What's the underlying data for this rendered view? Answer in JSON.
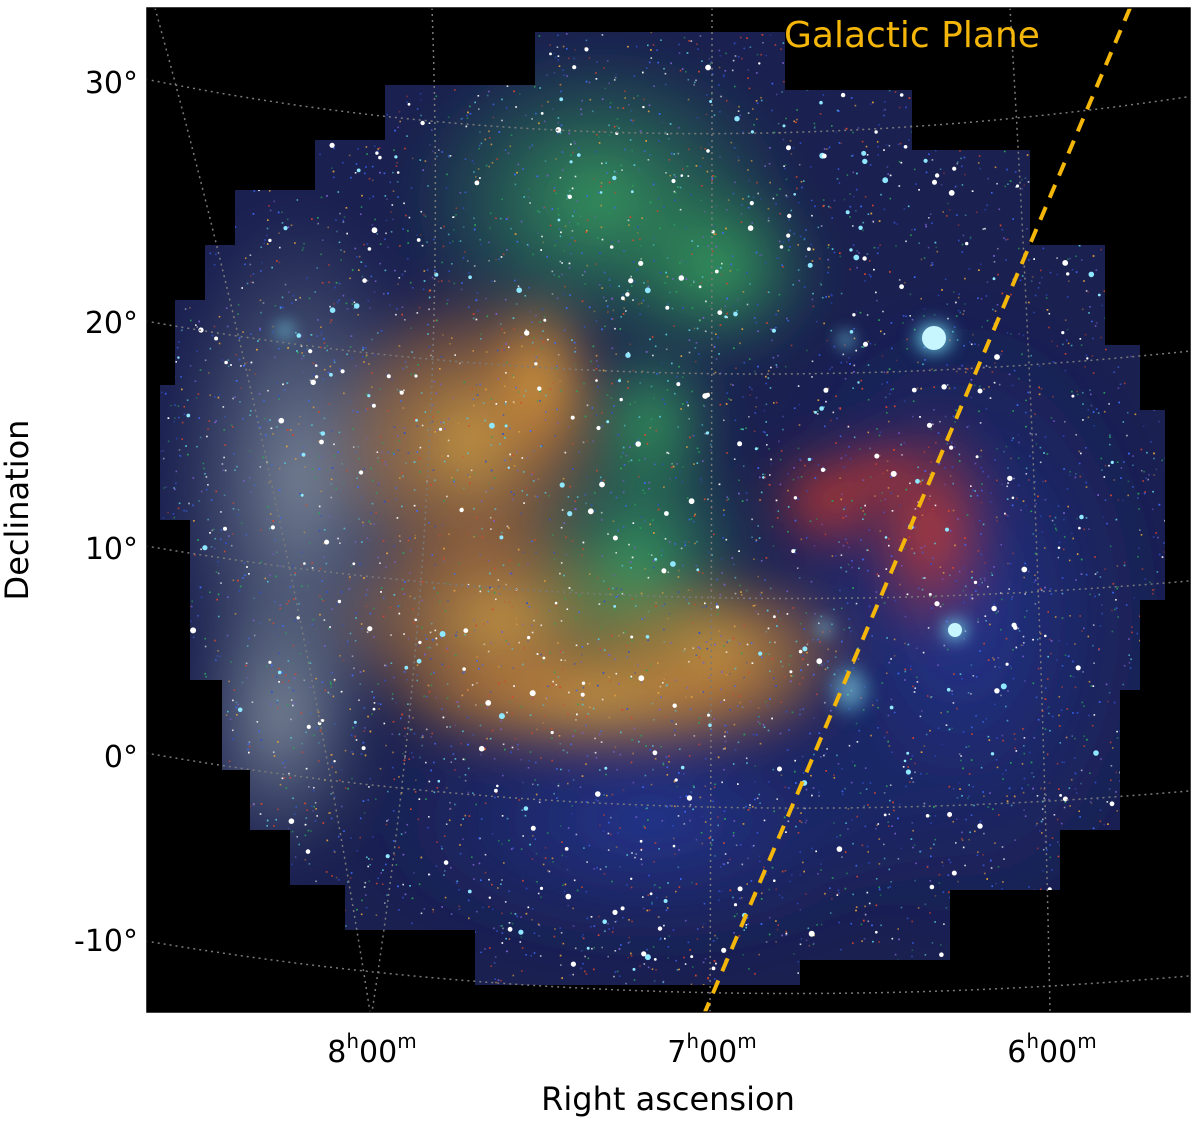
{
  "figure": {
    "xlabel": "Right ascension",
    "ylabel": "Declination",
    "dec_ticks": [
      "30°",
      "20°",
      "10°",
      "0°",
      "-10°"
    ],
    "ra_ticks": [
      {
        "h": "8",
        "m": "00"
      },
      {
        "h": "7",
        "m": "00"
      },
      {
        "h": "6",
        "m": "00"
      }
    ],
    "ra_unit_hour": "h",
    "ra_unit_min": "m",
    "galactic_plane_label": "Galactic Plane",
    "colors": {
      "background": "#000000",
      "galactic_plane": "#f5b60a",
      "grid": "#7a7a7a",
      "soft_band": "#d9462b",
      "medium_band": "#2aa35a",
      "hard_band": "#2f4fd0",
      "bright_source": "#7fe6ff"
    }
  }
}
